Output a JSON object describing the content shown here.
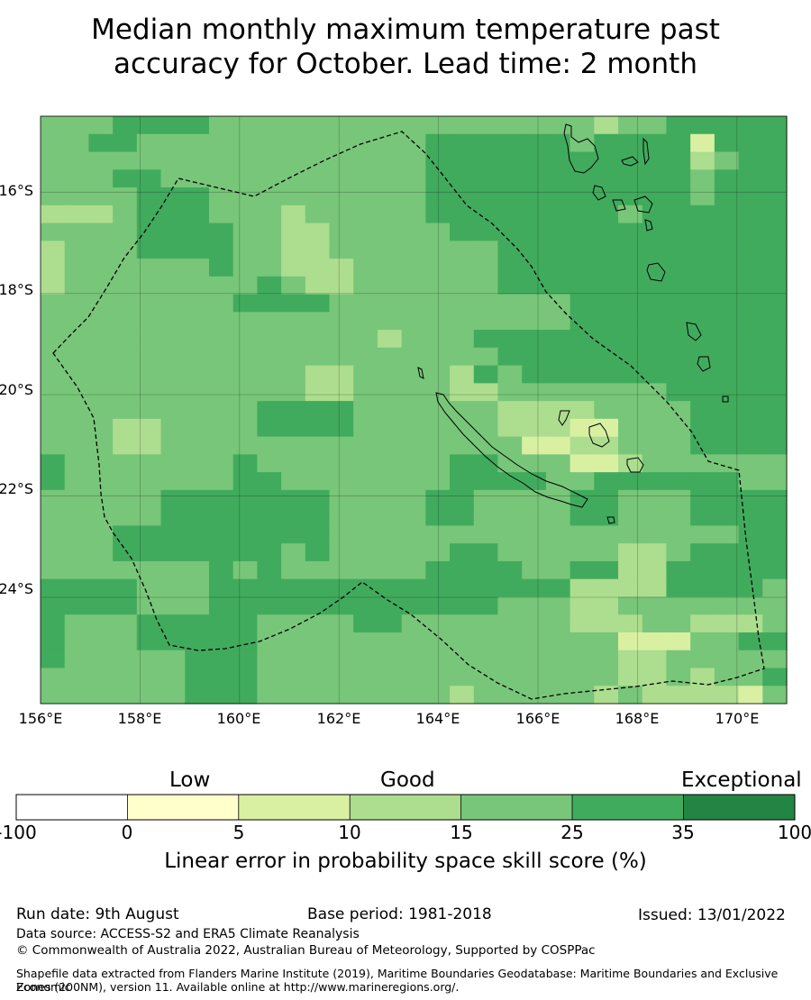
{
  "title_line1": "Median monthly maximum temperature past",
  "title_line2": "accuracy for October. Lead time: 2 month",
  "map": {
    "lon_labels": [
      "156°E",
      "158°E",
      "160°E",
      "162°E",
      "164°E",
      "166°E",
      "168°E",
      "170°E"
    ],
    "lat_labels": [
      "16°S",
      "18°S",
      "20°S",
      "22°S",
      "24°S"
    ],
    "extent": {
      "lon_min": 156,
      "lon_max": 171,
      "lat_min": -26.1,
      "lat_max": -14.5
    },
    "grid_rows": [
      "4445555444444444444444434455555",
      "4455444444444444555555455552555",
      "4444444444444444555555555553455",
      "4445544444444444555555555554555",
      "4444555444444444555555555554555",
      "3334555444344444555555554555555",
      "4444555544334444455555555555555",
      "3444555544334444444555555555555",
      "3444444544333444444555555555555",
      "3444444445433444444555555555555",
      "4444444455554444444444555555555",
      "4444444444444444444444555555555",
      "4444444444444434445555555555555",
      "4444444444444444444555555555555",
      "4444444444433444435455555555555",
      "4444444444433444433444444455555",
      "4444444445555444444333344445555",
      "4443344445555444444333224445555",
      "4443344444444444444422334445555",
      "5444444454444444455444223444444",
      "5444444455444444455554455555544",
      "4444455555554444554444554445555",
      "4444455555554444554444554445555",
      "4445555555554444444444444444455",
      "4445555555454444455444443345555",
      "4444444545444444555544553355555",
      "5555444555555555555555333355554",
      "5555444555555555555444334444444",
      "5444555554444554444444333443334",
      "5444555554444444444444442224455",
      "5444445554444444444444443344444",
      "4444445554444444444444443343445",
      "4444445554444444434444434333324"
    ],
    "colors": [
      "#ffffff",
      "#ffffcc",
      "#d9f0a3",
      "#addd8e",
      "#78c679",
      "#41ab5d",
      "#238443"
    ]
  },
  "colorbar": {
    "categories": [
      "Low",
      "Good",
      "Exceptional"
    ],
    "ticks": [
      "-100",
      "0",
      "5",
      "10",
      "15",
      "25",
      "35",
      "100"
    ],
    "title": "Linear error in probability space skill score (%)"
  },
  "footer": {
    "run_date": "Run date: 9th August",
    "base_period": "Base period: 1981-2018",
    "issued": "Issued: 13/01/2022",
    "data_source": "Data source: ACCESS-S2 and ERA5 Climate Reanalysis",
    "copyright": "© Commonwealth of Australia 2022, Australian Bureau of Meteorology, Supported by COSPPac",
    "shapefile_line1": "Shapefile data extracted from Flanders Marine Institute (2019), Maritime Boundaries Geodatabase: Maritime Boundaries and Exclusive Economic",
    "shapefile_line2": "Zones (200NM), version 11. Available online at http://www.marineregions.org/."
  }
}
